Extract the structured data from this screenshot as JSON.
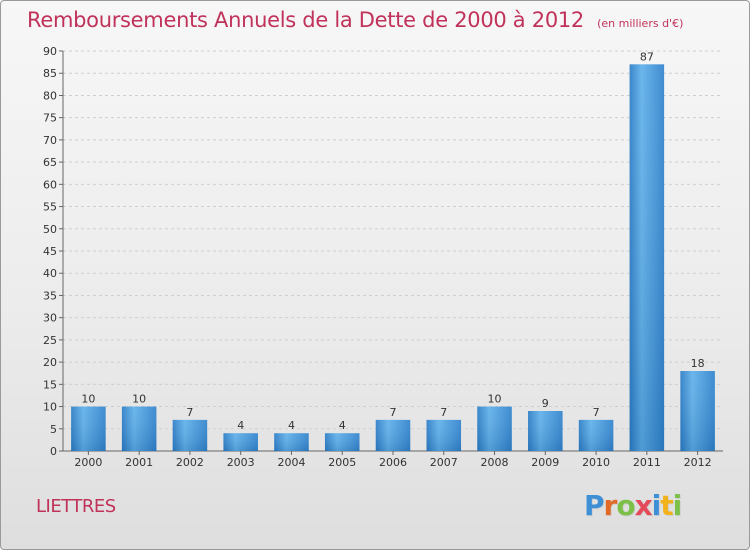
{
  "page": {
    "title": "Remboursements Annuels de la Dette de 2000 à 2012",
    "unit": "(en milliers d'€)",
    "commune": "LIETTRES",
    "logo": {
      "text": "Proxiti",
      "letters": [
        {
          "ch": "P",
          "color": "#3d8fd6"
        },
        {
          "ch": "r",
          "color": "#e06a26"
        },
        {
          "ch": "o",
          "color": "#7cc04a"
        },
        {
          "ch": "x",
          "color": "#e34a5a"
        },
        {
          "ch": "i",
          "color": "#3d8fd6"
        },
        {
          "ch": "t",
          "color": "#f2b21c"
        },
        {
          "ch": "i",
          "color": "#7cc04a"
        }
      ]
    }
  },
  "chart_data": {
    "type": "bar",
    "title": "Remboursements Annuels de la Dette de 2000 à 2012",
    "subtitle": "(en milliers d'€)",
    "xlabel": "",
    "ylabel": "",
    "categories": [
      "2000",
      "2001",
      "2002",
      "2003",
      "2004",
      "2005",
      "2006",
      "2007",
      "2008",
      "2009",
      "2010",
      "2011",
      "2012"
    ],
    "values": [
      10,
      10,
      7,
      4,
      4,
      4,
      7,
      7,
      10,
      9,
      7,
      87,
      18
    ],
    "ylim": [
      0,
      90
    ],
    "yticks": [
      0,
      5,
      10,
      15,
      20,
      25,
      30,
      35,
      40,
      45,
      50,
      55,
      60,
      65,
      70,
      75,
      80,
      85,
      90
    ],
    "grid": "horizontal dashed",
    "bar_color": "#3a8fd6",
    "legend": "none"
  }
}
